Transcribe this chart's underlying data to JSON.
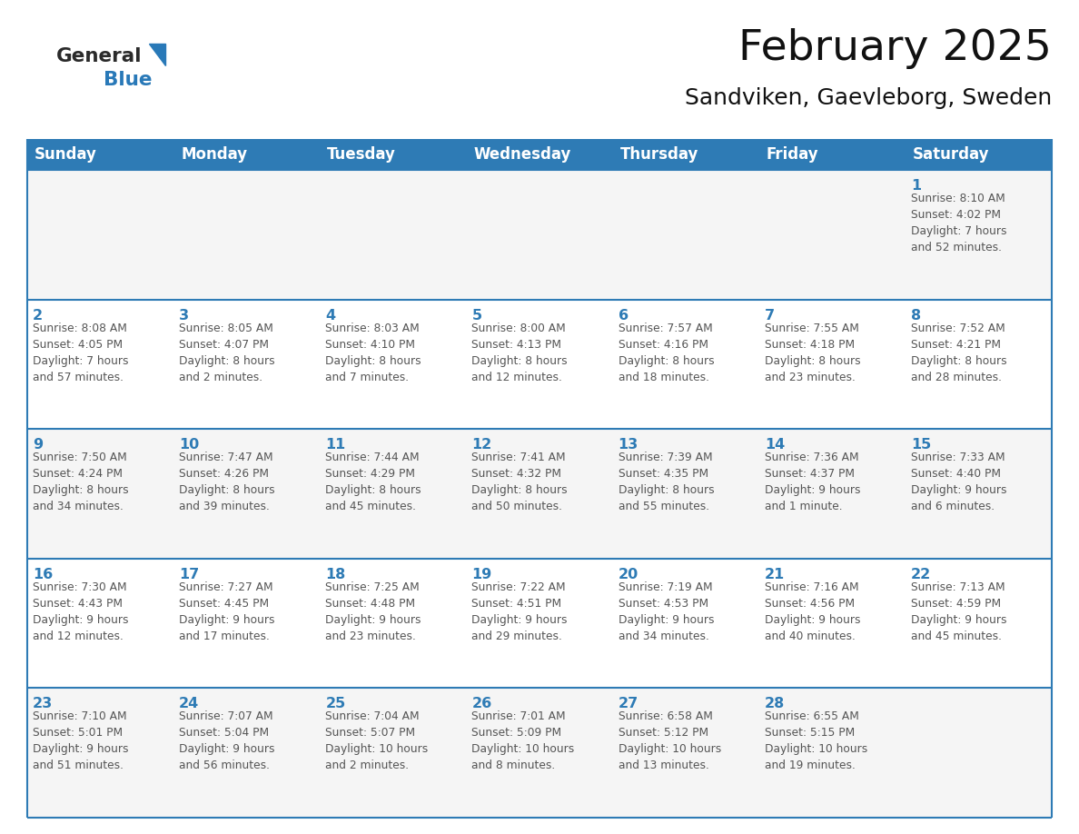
{
  "title": "February 2025",
  "subtitle": "Sandviken, Gaevleborg, Sweden",
  "header_bg": "#2E7BB5",
  "header_text_color": "#FFFFFF",
  "row_bg_odd": "#f5f5f5",
  "row_bg_even": "#ffffff",
  "cell_border_color": "#2E7BB5",
  "day_number_color": "#2E7BB5",
  "cell_text_color": "#555555",
  "days_of_week": [
    "Sunday",
    "Monday",
    "Tuesday",
    "Wednesday",
    "Thursday",
    "Friday",
    "Saturday"
  ],
  "weeks": [
    [
      {
        "day": "",
        "info": ""
      },
      {
        "day": "",
        "info": ""
      },
      {
        "day": "",
        "info": ""
      },
      {
        "day": "",
        "info": ""
      },
      {
        "day": "",
        "info": ""
      },
      {
        "day": "",
        "info": ""
      },
      {
        "day": "1",
        "info": "Sunrise: 8:10 AM\nSunset: 4:02 PM\nDaylight: 7 hours\nand 52 minutes."
      }
    ],
    [
      {
        "day": "2",
        "info": "Sunrise: 8:08 AM\nSunset: 4:05 PM\nDaylight: 7 hours\nand 57 minutes."
      },
      {
        "day": "3",
        "info": "Sunrise: 8:05 AM\nSunset: 4:07 PM\nDaylight: 8 hours\nand 2 minutes."
      },
      {
        "day": "4",
        "info": "Sunrise: 8:03 AM\nSunset: 4:10 PM\nDaylight: 8 hours\nand 7 minutes."
      },
      {
        "day": "5",
        "info": "Sunrise: 8:00 AM\nSunset: 4:13 PM\nDaylight: 8 hours\nand 12 minutes."
      },
      {
        "day": "6",
        "info": "Sunrise: 7:57 AM\nSunset: 4:16 PM\nDaylight: 8 hours\nand 18 minutes."
      },
      {
        "day": "7",
        "info": "Sunrise: 7:55 AM\nSunset: 4:18 PM\nDaylight: 8 hours\nand 23 minutes."
      },
      {
        "day": "8",
        "info": "Sunrise: 7:52 AM\nSunset: 4:21 PM\nDaylight: 8 hours\nand 28 minutes."
      }
    ],
    [
      {
        "day": "9",
        "info": "Sunrise: 7:50 AM\nSunset: 4:24 PM\nDaylight: 8 hours\nand 34 minutes."
      },
      {
        "day": "10",
        "info": "Sunrise: 7:47 AM\nSunset: 4:26 PM\nDaylight: 8 hours\nand 39 minutes."
      },
      {
        "day": "11",
        "info": "Sunrise: 7:44 AM\nSunset: 4:29 PM\nDaylight: 8 hours\nand 45 minutes."
      },
      {
        "day": "12",
        "info": "Sunrise: 7:41 AM\nSunset: 4:32 PM\nDaylight: 8 hours\nand 50 minutes."
      },
      {
        "day": "13",
        "info": "Sunrise: 7:39 AM\nSunset: 4:35 PM\nDaylight: 8 hours\nand 55 minutes."
      },
      {
        "day": "14",
        "info": "Sunrise: 7:36 AM\nSunset: 4:37 PM\nDaylight: 9 hours\nand 1 minute."
      },
      {
        "day": "15",
        "info": "Sunrise: 7:33 AM\nSunset: 4:40 PM\nDaylight: 9 hours\nand 6 minutes."
      }
    ],
    [
      {
        "day": "16",
        "info": "Sunrise: 7:30 AM\nSunset: 4:43 PM\nDaylight: 9 hours\nand 12 minutes."
      },
      {
        "day": "17",
        "info": "Sunrise: 7:27 AM\nSunset: 4:45 PM\nDaylight: 9 hours\nand 17 minutes."
      },
      {
        "day": "18",
        "info": "Sunrise: 7:25 AM\nSunset: 4:48 PM\nDaylight: 9 hours\nand 23 minutes."
      },
      {
        "day": "19",
        "info": "Sunrise: 7:22 AM\nSunset: 4:51 PM\nDaylight: 9 hours\nand 29 minutes."
      },
      {
        "day": "20",
        "info": "Sunrise: 7:19 AM\nSunset: 4:53 PM\nDaylight: 9 hours\nand 34 minutes."
      },
      {
        "day": "21",
        "info": "Sunrise: 7:16 AM\nSunset: 4:56 PM\nDaylight: 9 hours\nand 40 minutes."
      },
      {
        "day": "22",
        "info": "Sunrise: 7:13 AM\nSunset: 4:59 PM\nDaylight: 9 hours\nand 45 minutes."
      }
    ],
    [
      {
        "day": "23",
        "info": "Sunrise: 7:10 AM\nSunset: 5:01 PM\nDaylight: 9 hours\nand 51 minutes."
      },
      {
        "day": "24",
        "info": "Sunrise: 7:07 AM\nSunset: 5:04 PM\nDaylight: 9 hours\nand 56 minutes."
      },
      {
        "day": "25",
        "info": "Sunrise: 7:04 AM\nSunset: 5:07 PM\nDaylight: 10 hours\nand 2 minutes."
      },
      {
        "day": "26",
        "info": "Sunrise: 7:01 AM\nSunset: 5:09 PM\nDaylight: 10 hours\nand 8 minutes."
      },
      {
        "day": "27",
        "info": "Sunrise: 6:58 AM\nSunset: 5:12 PM\nDaylight: 10 hours\nand 13 minutes."
      },
      {
        "day": "28",
        "info": "Sunrise: 6:55 AM\nSunset: 5:15 PM\nDaylight: 10 hours\nand 19 minutes."
      },
      {
        "day": "",
        "info": ""
      }
    ]
  ],
  "logo_general_color": "#2a2a2a",
  "logo_blue_color": "#2979b8",
  "title_fontsize": 34,
  "subtitle_fontsize": 18,
  "header_fontsize": 12,
  "day_num_fontsize": 11.5,
  "cell_text_fontsize": 8.8
}
